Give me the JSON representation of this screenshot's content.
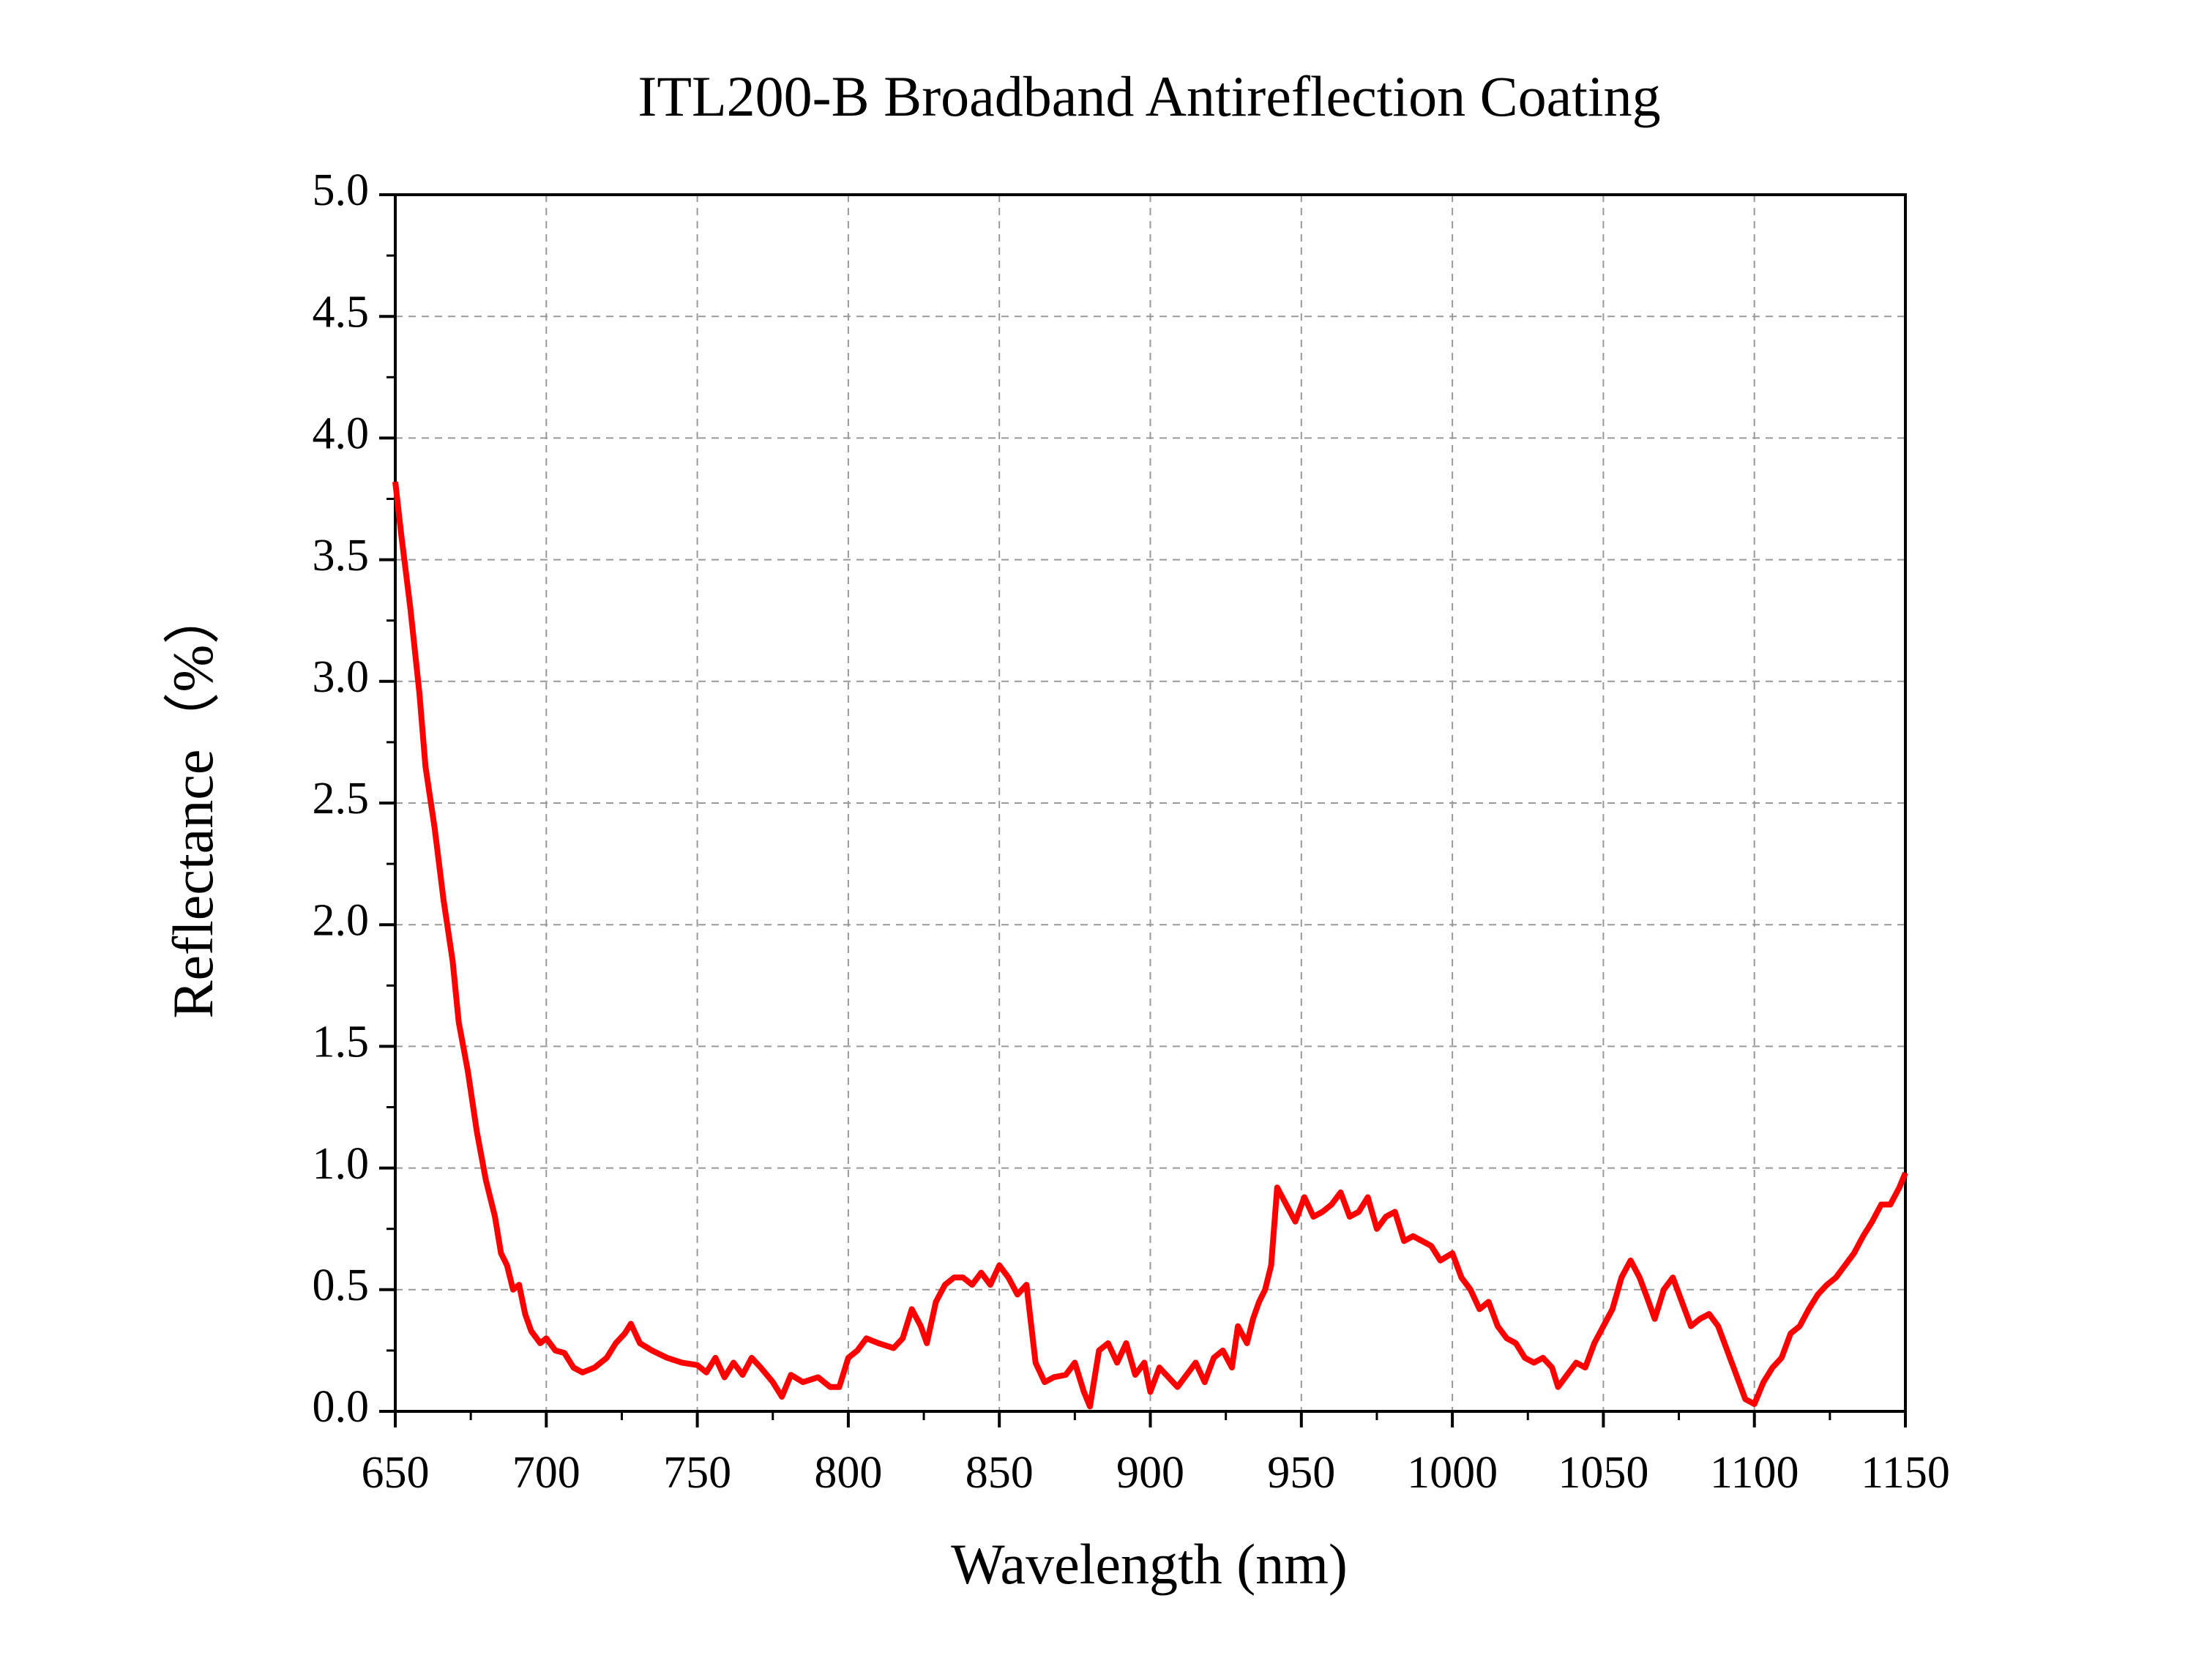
{
  "chart_data": {
    "type": "line",
    "title": "ITL200-B Broadband Antireflection Coating",
    "xlabel": "Wavelength (nm)",
    "ylabel": "Reflectance（%）",
    "grid": true,
    "xlim": [
      650,
      1150
    ],
    "ylim": [
      0,
      5
    ],
    "xticks": [
      650,
      700,
      750,
      800,
      850,
      900,
      950,
      1000,
      1050,
      1100,
      1150
    ],
    "yticks": [
      {
        "value": 0,
        "label": "0.0"
      },
      0.5,
      {
        "value": 1,
        "label": "1.0"
      },
      1.5,
      {
        "value": 2,
        "label": "2.0"
      },
      2.5,
      {
        "value": 3,
        "label": "3.0"
      },
      3.5,
      {
        "value": 4,
        "label": "4.0"
      },
      4.5,
      {
        "value": 5,
        "label": "5.0"
      }
    ],
    "x": [
      650,
      652,
      655,
      658,
      660,
      663,
      666,
      669,
      671,
      674,
      677,
      680,
      683,
      685,
      687,
      689,
      691,
      693,
      695,
      698,
      700,
      703,
      706,
      709,
      712,
      716,
      720,
      723,
      726,
      728,
      731,
      735,
      740,
      745,
      750,
      753,
      756,
      759,
      762,
      765,
      768,
      771,
      775,
      778,
      781,
      785,
      790,
      794,
      797,
      800,
      803,
      806,
      810,
      815,
      818,
      821,
      824,
      826,
      829,
      832,
      835,
      838,
      841,
      844,
      847,
      850,
      853,
      856,
      859,
      862,
      865,
      868,
      872,
      875,
      878,
      880,
      883,
      886,
      889,
      892,
      895,
      898,
      900,
      903,
      906,
      909,
      912,
      915,
      918,
      921,
      924,
      927,
      929,
      932,
      934,
      936,
      938,
      940,
      942,
      945,
      948,
      951,
      954,
      957,
      960,
      963,
      966,
      969,
      972,
      975,
      978,
      981,
      984,
      987,
      990,
      993,
      996,
      1000,
      1003,
      1006,
      1009,
      1012,
      1015,
      1018,
      1021,
      1024,
      1027,
      1030,
      1033,
      1035,
      1038,
      1041,
      1044,
      1047,
      1050,
      1053,
      1056,
      1059,
      1062,
      1065,
      1067,
      1070,
      1073,
      1076,
      1079,
      1082,
      1085,
      1088,
      1091,
      1094,
      1097,
      1100,
      1103,
      1106,
      1109,
      1112,
      1115,
      1118,
      1121,
      1124,
      1127,
      1130,
      1133,
      1136,
      1139,
      1142,
      1145,
      1148,
      1150
    ],
    "series": [
      {
        "name": "Reflectance",
        "color": "#ff0000",
        "values": [
          3.82,
          3.6,
          3.3,
          2.95,
          2.65,
          2.4,
          2.1,
          1.85,
          1.6,
          1.4,
          1.15,
          0.95,
          0.8,
          0.65,
          0.6,
          0.5,
          0.52,
          0.4,
          0.33,
          0.28,
          0.3,
          0.25,
          0.24,
          0.18,
          0.16,
          0.18,
          0.22,
          0.28,
          0.32,
          0.36,
          0.28,
          0.25,
          0.22,
          0.2,
          0.19,
          0.16,
          0.22,
          0.14,
          0.2,
          0.15,
          0.22,
          0.18,
          0.12,
          0.06,
          0.15,
          0.12,
          0.14,
          0.1,
          0.1,
          0.22,
          0.25,
          0.3,
          0.28,
          0.26,
          0.3,
          0.42,
          0.35,
          0.28,
          0.45,
          0.52,
          0.55,
          0.55,
          0.52,
          0.57,
          0.52,
          0.6,
          0.55,
          0.48,
          0.52,
          0.2,
          0.12,
          0.14,
          0.15,
          0.2,
          0.08,
          0.02,
          0.25,
          0.28,
          0.2,
          0.28,
          0.15,
          0.2,
          0.08,
          0.18,
          0.14,
          0.1,
          0.15,
          0.2,
          0.12,
          0.22,
          0.25,
          0.18,
          0.35,
          0.28,
          0.38,
          0.45,
          0.5,
          0.6,
          0.92,
          0.85,
          0.78,
          0.88,
          0.8,
          0.82,
          0.85,
          0.9,
          0.8,
          0.82,
          0.88,
          0.75,
          0.8,
          0.82,
          0.7,
          0.72,
          0.7,
          0.68,
          0.62,
          0.65,
          0.55,
          0.5,
          0.42,
          0.45,
          0.35,
          0.3,
          0.28,
          0.22,
          0.2,
          0.22,
          0.18,
          0.1,
          0.15,
          0.2,
          0.18,
          0.28,
          0.35,
          0.42,
          0.55,
          0.62,
          0.55,
          0.45,
          0.38,
          0.5,
          0.55,
          0.45,
          0.35,
          0.38,
          0.4,
          0.35,
          0.25,
          0.15,
          0.05,
          0.03,
          0.12,
          0.18,
          0.22,
          0.32,
          0.35,
          0.42,
          0.48,
          0.52,
          0.55,
          0.6,
          0.65,
          0.72,
          0.78,
          0.85,
          0.85,
          0.92,
          0.98
        ]
      }
    ]
  }
}
